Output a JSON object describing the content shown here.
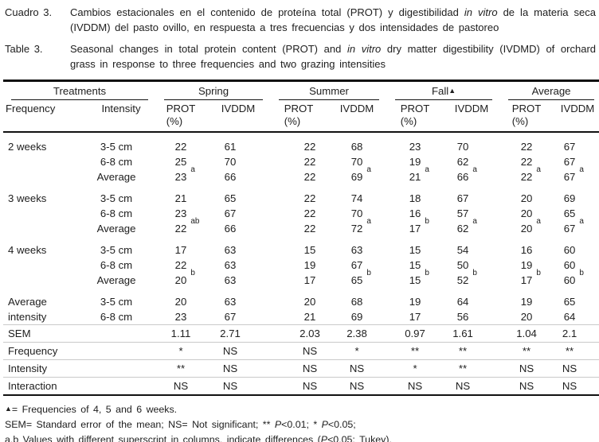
{
  "colors": {
    "text": "#202020",
    "rule": "#111111",
    "faint_rule": "#c9c9c9",
    "background": "#ffffff"
  },
  "captions": {
    "spanish": {
      "label": "Cuadro 3.",
      "parts": [
        {
          "t": "Cambios estacionales en el contenido de proteína total (PROT) y digestibilidad "
        },
        {
          "t": "in vitro",
          "i": true
        },
        {
          "t": " de la materia seca (IVDDM) del pasto ovillo, en respuesta a tres frecuencias y dos intensidades de pastoreo"
        }
      ]
    },
    "english": {
      "label": "Table 3.",
      "parts": [
        {
          "t": "Seasonal changes in total protein content (PROT) and "
        },
        {
          "t": "in vitro",
          "i": true
        },
        {
          "t": " dry matter digestibility (IVDMD) of orchard grass in response to three frequencies and two grazing intensities"
        }
      ]
    }
  },
  "table": {
    "groups": {
      "treatments": "Treatments",
      "spring": "Spring",
      "summer": "Summer",
      "fall": "Fall",
      "fall_marker": "▲",
      "average": "Average"
    },
    "col_headers": {
      "frequency": "Frequency",
      "intensity": "Intensity",
      "prot": "PROT",
      "unit": "(%)",
      "ivddm": "IVDDM"
    },
    "rows": [
      {
        "freq": "2 weeks",
        "intensity": "3-5 cm",
        "gs": true,
        "vals": [
          {
            "v": "22"
          },
          {
            "v": "61"
          },
          {
            "v": "22"
          },
          {
            "v": "68"
          },
          {
            "v": "23"
          },
          {
            "v": "70"
          },
          {
            "v": "22"
          },
          {
            "v": "67"
          }
        ]
      },
      {
        "freq": "",
        "intensity": "6-8 cm",
        "vals": [
          {
            "v": "25"
          },
          {
            "v": "70"
          },
          {
            "v": "22"
          },
          {
            "v": "70"
          },
          {
            "v": "19"
          },
          {
            "v": "62"
          },
          {
            "v": "22"
          },
          {
            "v": "67"
          }
        ]
      },
      {
        "freq": "",
        "intensity": "Average",
        "vals": [
          {
            "v": "23",
            "sup": "a"
          },
          {
            "v": "66"
          },
          {
            "v": "22"
          },
          {
            "v": "69",
            "sup": "a"
          },
          {
            "v": "21",
            "sup": "a"
          },
          {
            "v": "66",
            "sup": "a"
          },
          {
            "v": "22",
            "sup": "a"
          },
          {
            "v": "67",
            "sup": "a"
          }
        ]
      },
      {
        "freq": "3 weeks",
        "intensity": "3-5 cm",
        "gs": true,
        "vals": [
          {
            "v": "21"
          },
          {
            "v": "65"
          },
          {
            "v": "22"
          },
          {
            "v": "74"
          },
          {
            "v": "18"
          },
          {
            "v": "67"
          },
          {
            "v": "20"
          },
          {
            "v": "69"
          }
        ]
      },
      {
        "freq": "",
        "intensity": "6-8 cm",
        "vals": [
          {
            "v": "23"
          },
          {
            "v": "67"
          },
          {
            "v": "22"
          },
          {
            "v": "70"
          },
          {
            "v": "16"
          },
          {
            "v": "57"
          },
          {
            "v": "20"
          },
          {
            "v": "65"
          }
        ]
      },
      {
        "freq": "",
        "intensity": "Average",
        "vals": [
          {
            "v": "22",
            "sup": "ab"
          },
          {
            "v": "66"
          },
          {
            "v": "22"
          },
          {
            "v": "72",
            "sup": "a"
          },
          {
            "v": "17",
            "sup": "b"
          },
          {
            "v": "62",
            "sup": "a"
          },
          {
            "v": "20",
            "sup": "a"
          },
          {
            "v": "67",
            "sup": "a"
          }
        ]
      },
      {
        "freq": "4 weeks",
        "intensity": "3-5 cm",
        "gs": true,
        "vals": [
          {
            "v": "17"
          },
          {
            "v": "63"
          },
          {
            "v": "15"
          },
          {
            "v": "63"
          },
          {
            "v": "15"
          },
          {
            "v": "54"
          },
          {
            "v": "16"
          },
          {
            "v": "60"
          }
        ]
      },
      {
        "freq": "",
        "intensity": "6-8 cm",
        "vals": [
          {
            "v": "22"
          },
          {
            "v": "63"
          },
          {
            "v": "19"
          },
          {
            "v": "67"
          },
          {
            "v": "15"
          },
          {
            "v": "50"
          },
          {
            "v": "19"
          },
          {
            "v": "60"
          }
        ]
      },
      {
        "freq": "",
        "intensity": "Average",
        "vals": [
          {
            "v": "20",
            "sup": "b"
          },
          {
            "v": "63"
          },
          {
            "v": "17"
          },
          {
            "v": "65",
            "sup": "b"
          },
          {
            "v": "15",
            "sup": "b"
          },
          {
            "v": "52",
            "sup": "b"
          },
          {
            "v": "17",
            "sup": "b"
          },
          {
            "v": "60",
            "sup": "b"
          }
        ]
      },
      {
        "freq": "Average",
        "intensity": "3-5 cm",
        "gs": true,
        "vals": [
          {
            "v": "20"
          },
          {
            "v": "63"
          },
          {
            "v": "20"
          },
          {
            "v": "68"
          },
          {
            "v": "19"
          },
          {
            "v": "64"
          },
          {
            "v": "19"
          },
          {
            "v": "65"
          }
        ]
      },
      {
        "freq": "intensity",
        "intensity": "6-8 cm",
        "vals": [
          {
            "v": "23"
          },
          {
            "v": "67"
          },
          {
            "v": "21"
          },
          {
            "v": "69"
          },
          {
            "v": "17"
          },
          {
            "v": "56"
          },
          {
            "v": "20"
          },
          {
            "v": "64"
          }
        ]
      }
    ],
    "stats": [
      {
        "label": "SEM",
        "vals": [
          "1.11",
          "2.71",
          "2.03",
          "2.38",
          "0.97",
          "1.61",
          "1.04",
          "2.1"
        ]
      },
      {
        "label": "Frequency",
        "vals": [
          "*",
          "NS",
          "NS",
          "*",
          "**",
          "**",
          "**",
          "**"
        ]
      },
      {
        "label": "Intensity",
        "vals": [
          "**",
          "NS",
          "NS",
          "NS",
          "*",
          "**",
          "NS",
          "NS"
        ]
      },
      {
        "label": "Interaction",
        "vals": [
          "NS",
          "NS",
          "NS",
          "NS",
          "NS",
          "NS",
          "NS",
          "NS"
        ]
      }
    ]
  },
  "footnotes": {
    "triangle": {
      "marker": "▲",
      "text": "=  Frequencies of 4, 5 and 6 weeks."
    },
    "sem": {
      "parts": [
        {
          "t": "SEM=  Standard error of the mean;  NS=  Not  significant;  **  "
        },
        {
          "t": "P",
          "i": true
        },
        {
          "t": "<0.01;  *  "
        },
        {
          "t": "P",
          "i": true
        },
        {
          "t": "<0.05;"
        }
      ]
    },
    "tukey": {
      "parts": [
        {
          "t": "a,b Values  with  different  superscript  in  columns,  indicate  differences  ("
        },
        {
          "t": "P",
          "i": true
        },
        {
          "t": "<0.05;  Tukey)."
        }
      ]
    }
  }
}
